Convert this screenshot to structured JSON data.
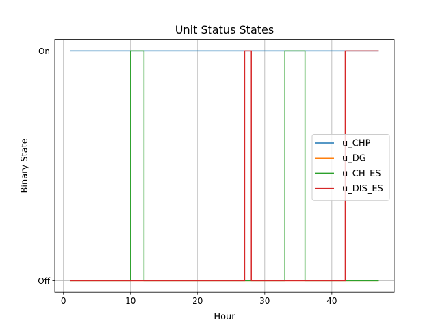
{
  "chart_data": {
    "type": "line",
    "title": "Unit Status States",
    "xlabel": "Hour",
    "ylabel": "Binary State",
    "xlim": [
      -1.3,
      49.3
    ],
    "ylim": [
      -0.05,
      1.05
    ],
    "xticks": [
      0,
      10,
      20,
      30,
      40
    ],
    "yticks": [
      {
        "value": 0,
        "label": "Off"
      },
      {
        "value": 1,
        "label": "On"
      }
    ],
    "grid": true,
    "legend_position": "center-right",
    "series": [
      {
        "name": "u_CHP",
        "color": "#1f77b4",
        "steps": [
          [
            1,
            1
          ],
          [
            47,
            1
          ]
        ]
      },
      {
        "name": "u_DG",
        "color": "#ff7f0e",
        "steps": [
          [
            1,
            0
          ],
          [
            47,
            0
          ]
        ]
      },
      {
        "name": "u_CH_ES",
        "color": "#2ca02c",
        "steps": [
          [
            1,
            0
          ],
          [
            10,
            0
          ],
          [
            10,
            1
          ],
          [
            12,
            1
          ],
          [
            12,
            0
          ],
          [
            33,
            0
          ],
          [
            33,
            1
          ],
          [
            36,
            1
          ],
          [
            36,
            0
          ],
          [
            47,
            0
          ]
        ]
      },
      {
        "name": "u_DIS_ES",
        "color": "#d62728",
        "steps": [
          [
            1,
            0
          ],
          [
            27,
            0
          ],
          [
            27,
            1
          ],
          [
            28,
            1
          ],
          [
            28,
            0
          ],
          [
            42,
            0
          ],
          [
            42,
            1
          ],
          [
            47,
            1
          ]
        ]
      }
    ]
  }
}
